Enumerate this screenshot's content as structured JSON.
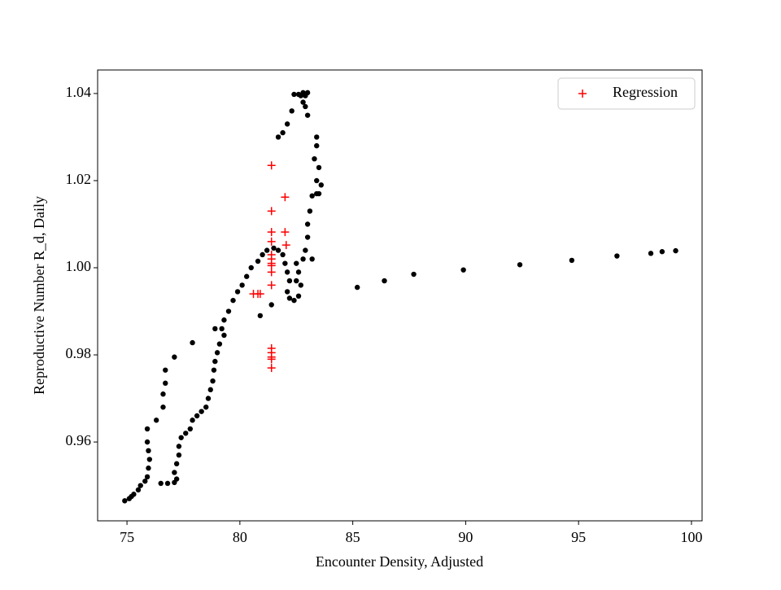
{
  "chart_data": {
    "type": "scatter",
    "xlabel": "Encounter Density, Adjusted",
    "ylabel": "Reproductive Number R_d, Daily",
    "xlim": [
      73.7,
      100.47
    ],
    "ylim": [
      0.9419,
      1.0454
    ],
    "xticks": [
      75,
      80,
      85,
      90,
      95,
      100
    ],
    "yticks": [
      {
        "value": 0.96,
        "label": "0.96"
      },
      {
        "value": 0.98,
        "label": "0.98"
      },
      {
        "value": 1.0,
        "label": "1.00"
      },
      {
        "value": 1.02,
        "label": "1.02"
      },
      {
        "value": 1.04,
        "label": "1.04"
      }
    ],
    "legend": "upper right",
    "series": [
      {
        "color": "#000000",
        "marker": "dot",
        "x": [
          74.9,
          75.1,
          75.3,
          75.2,
          75.5,
          75.6,
          75.8,
          75.9,
          75.95,
          76.0,
          75.95,
          75.9,
          75.9,
          76.3,
          76.6,
          76.6,
          76.7,
          76.7,
          77.1,
          77.9,
          76.5,
          76.8,
          77.1,
          77.2,
          77.1,
          77.2,
          77.3,
          77.3,
          77.4,
          77.6,
          77.8,
          77.9,
          78.1,
          78.3,
          78.5,
          78.6,
          78.7,
          78.8,
          78.85,
          78.9,
          79.0,
          79.1,
          78.9,
          79.2,
          79.3,
          79.3,
          79.5,
          79.7,
          79.9,
          80.1,
          80.3,
          80.5,
          80.8,
          81.0,
          81.2,
          81.5,
          81.7,
          81.9,
          82.0,
          82.1,
          82.2,
          82.1,
          82.2,
          82.4,
          82.6,
          82.7,
          82.5,
          82.6,
          82.5,
          82.8,
          83.2,
          82.9,
          83.0,
          83.0,
          83.1,
          83.2,
          83.4,
          83.5,
          83.6,
          83.4,
          83.5,
          83.3,
          83.4,
          83.4,
          83.0,
          82.9,
          82.9,
          82.7,
          82.6,
          82.4,
          82.3,
          82.1,
          81.9,
          81.7,
          82.8,
          83.0,
          82.8,
          81.4,
          80.9,
          85.2,
          86.4,
          87.7,
          89.9,
          92.4,
          94.7,
          96.7,
          98.2,
          98.7,
          99.3
        ],
        "values": [
          0.9465,
          0.947,
          0.948,
          0.9475,
          0.949,
          0.95,
          0.951,
          0.952,
          0.954,
          0.956,
          0.958,
          0.96,
          0.963,
          0.965,
          0.968,
          0.971,
          0.9735,
          0.9765,
          0.9795,
          0.9828,
          0.9505,
          0.9505,
          0.9507,
          0.9515,
          0.953,
          0.955,
          0.957,
          0.959,
          0.961,
          0.962,
          0.963,
          0.965,
          0.966,
          0.967,
          0.968,
          0.97,
          0.972,
          0.974,
          0.9765,
          0.9785,
          0.9805,
          0.9825,
          0.986,
          0.986,
          0.9845,
          0.988,
          0.99,
          0.9925,
          0.9945,
          0.996,
          0.998,
          1.0,
          1.0015,
          1.003,
          1.004,
          1.0045,
          1.004,
          1.003,
          1.001,
          0.999,
          0.997,
          0.9945,
          0.993,
          0.9925,
          0.9935,
          0.996,
          0.997,
          0.999,
          1.001,
          1.002,
          1.002,
          1.004,
          1.007,
          1.01,
          1.013,
          1.0165,
          1.017,
          1.017,
          1.019,
          1.02,
          1.023,
          1.025,
          1.028,
          1.03,
          1.035,
          1.037,
          1.0395,
          1.0395,
          1.0398,
          1.0398,
          1.036,
          1.033,
          1.031,
          1.03,
          1.0402,
          1.0402,
          1.038,
          0.9915,
          0.989,
          0.9955,
          0.997,
          0.9985,
          0.9995,
          1.0007,
          1.0017,
          1.0027,
          1.0033,
          1.0037,
          1.0039
        ]
      },
      {
        "name": "Regression",
        "color": "#ff0000",
        "marker": "plus",
        "x": [
          81.4,
          82.0,
          81.4,
          81.4,
          82.0,
          81.4,
          82.05,
          81.4,
          81.4,
          81.4,
          81.4,
          81.4,
          81.4,
          80.6,
          80.8,
          80.9,
          81.4,
          81.4,
          81.4,
          81.4,
          81.4
        ],
        "values": [
          1.0235,
          1.0162,
          1.013,
          1.0082,
          1.0082,
          1.006,
          1.0052,
          1.003,
          1.002,
          1.001,
          1.0005,
          0.999,
          0.996,
          0.994,
          0.994,
          0.994,
          0.9815,
          0.9805,
          0.9795,
          0.979,
          0.977
        ]
      }
    ]
  }
}
